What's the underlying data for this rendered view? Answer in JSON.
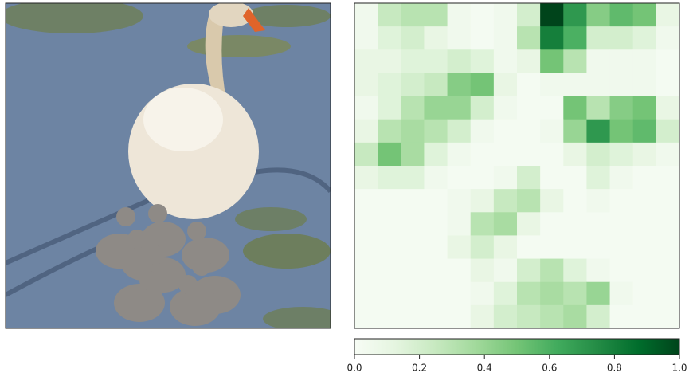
{
  "chart_data": {
    "type": "heatmap",
    "colormap": "Greens",
    "z": [
      [
        0.05,
        0.25,
        0.3,
        0.3,
        0.05,
        0.02,
        0.05,
        0.2,
        1.0,
        0.7,
        0.45,
        0.55,
        0.5,
        0.1
      ],
      [
        0.05,
        0.15,
        0.2,
        0.1,
        0.05,
        0.02,
        0.05,
        0.3,
        0.8,
        0.6,
        0.2,
        0.2,
        0.15,
        0.05
      ],
      [
        0.1,
        0.1,
        0.15,
        0.15,
        0.2,
        0.15,
        0.05,
        0.1,
        0.5,
        0.3,
        0.05,
        0.05,
        0.05,
        0.02
      ],
      [
        0.1,
        0.15,
        0.2,
        0.25,
        0.45,
        0.5,
        0.1,
        0.02,
        0.05,
        0.05,
        0.05,
        0.05,
        0.05,
        0.02
      ],
      [
        0.05,
        0.15,
        0.3,
        0.4,
        0.4,
        0.2,
        0.05,
        0.02,
        0.02,
        0.5,
        0.3,
        0.45,
        0.5,
        0.1
      ],
      [
        0.1,
        0.3,
        0.35,
        0.3,
        0.2,
        0.05,
        0.02,
        0.02,
        0.05,
        0.4,
        0.7,
        0.5,
        0.55,
        0.2
      ],
      [
        0.25,
        0.5,
        0.35,
        0.15,
        0.05,
        0.02,
        0.02,
        0.02,
        0.02,
        0.1,
        0.2,
        0.15,
        0.1,
        0.05
      ],
      [
        0.1,
        0.15,
        0.15,
        0.05,
        0.02,
        0.02,
        0.05,
        0.2,
        0.02,
        0.02,
        0.15,
        0.05,
        0.02,
        0.02
      ],
      [
        0.02,
        0.02,
        0.02,
        0.02,
        0.05,
        0.1,
        0.25,
        0.3,
        0.1,
        0.02,
        0.05,
        0.02,
        0.02,
        0.02
      ],
      [
        0.02,
        0.02,
        0.02,
        0.02,
        0.05,
        0.3,
        0.35,
        0.1,
        0.02,
        0.02,
        0.02,
        0.02,
        0.02,
        0.02
      ],
      [
        0.02,
        0.02,
        0.02,
        0.02,
        0.1,
        0.2,
        0.1,
        0.02,
        0.02,
        0.02,
        0.02,
        0.02,
        0.02,
        0.02
      ],
      [
        0.02,
        0.02,
        0.02,
        0.02,
        0.02,
        0.1,
        0.05,
        0.2,
        0.3,
        0.15,
        0.05,
        0.02,
        0.02,
        0.02
      ],
      [
        0.02,
        0.02,
        0.02,
        0.02,
        0.02,
        0.05,
        0.15,
        0.3,
        0.35,
        0.3,
        0.4,
        0.05,
        0.02,
        0.02
      ],
      [
        0.02,
        0.02,
        0.02,
        0.02,
        0.02,
        0.1,
        0.2,
        0.25,
        0.3,
        0.35,
        0.2,
        0.02,
        0.02,
        0.02
      ]
    ],
    "colorbar": {
      "xlim": [
        0,
        1
      ],
      "xticks": [
        {
          "value": 0,
          "label": "0.0"
        },
        0.2,
        0.4,
        0.6,
        0.8,
        {
          "value": 1,
          "label": "1.0"
        }
      ]
    }
  }
}
